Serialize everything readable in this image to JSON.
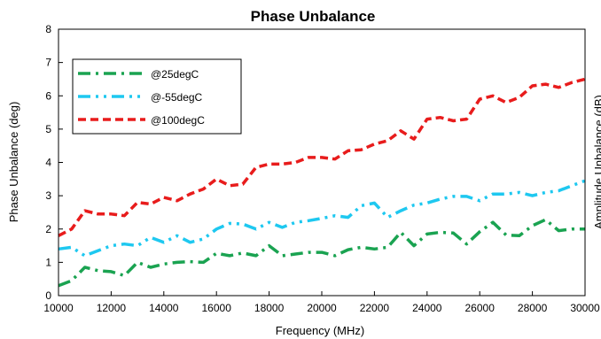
{
  "chart_data": {
    "type": "line",
    "title": "Phase Unbalance",
    "xlabel": "Frequency (MHz)",
    "ylabel": "Phase Unbalance (deg)",
    "secondary_ylabel": "Amplitude Unbalance (dB)",
    "xlim": [
      10000,
      30000
    ],
    "ylim": [
      0,
      8
    ],
    "xticks": [
      10000,
      12000,
      14000,
      16000,
      18000,
      20000,
      22000,
      24000,
      26000,
      28000,
      30000
    ],
    "yticks": [
      0,
      1,
      2,
      3,
      4,
      5,
      6,
      7,
      8
    ],
    "grid": false,
    "legend": "top-left",
    "series": [
      {
        "name": "@25degC",
        "color": "#1aa351",
        "style": "dash-dot",
        "x": [
          10000,
          10500,
          11000,
          11500,
          12000,
          12500,
          13000,
          13500,
          14000,
          14500,
          15000,
          15500,
          16000,
          16500,
          17000,
          17500,
          18000,
          18500,
          19000,
          19500,
          20000,
          20500,
          21000,
          21500,
          22000,
          22500,
          23000,
          23500,
          24000,
          24500,
          25000,
          25500,
          26000,
          26500,
          27000,
          27500,
          28000,
          28500,
          29000,
          29500,
          30000
        ],
        "values": [
          0.3,
          0.45,
          0.85,
          0.75,
          0.72,
          0.6,
          1.0,
          0.85,
          0.95,
          1.0,
          1.02,
          1.0,
          1.27,
          1.2,
          1.28,
          1.2,
          1.5,
          1.2,
          1.25,
          1.3,
          1.3,
          1.2,
          1.38,
          1.45,
          1.4,
          1.45,
          1.9,
          1.5,
          1.85,
          1.9,
          1.88,
          1.55,
          1.92,
          2.2,
          1.82,
          1.8,
          2.1,
          2.28,
          1.95,
          2.0,
          2.0
        ]
      },
      {
        "name": "@-55degC",
        "color": "#1ec8f0",
        "style": "dash-dot-dot",
        "x": [
          10000,
          10500,
          11000,
          11500,
          12000,
          12500,
          13000,
          13500,
          14000,
          14500,
          15000,
          15500,
          16000,
          16500,
          17000,
          17500,
          18000,
          18500,
          19000,
          19500,
          20000,
          20500,
          21000,
          21500,
          22000,
          22500,
          23000,
          23500,
          24000,
          24500,
          25000,
          25500,
          26000,
          26500,
          27000,
          27500,
          28000,
          28500,
          29000,
          29500,
          30000
        ],
        "values": [
          1.4,
          1.45,
          1.2,
          1.35,
          1.5,
          1.55,
          1.5,
          1.75,
          1.6,
          1.8,
          1.6,
          1.7,
          2.0,
          2.17,
          2.15,
          2.0,
          2.2,
          2.05,
          2.2,
          2.25,
          2.32,
          2.4,
          2.35,
          2.7,
          2.78,
          2.35,
          2.55,
          2.72,
          2.78,
          2.9,
          2.98,
          2.98,
          2.85,
          3.05,
          3.05,
          3.1,
          3.0,
          3.1,
          3.15,
          3.3,
          3.45
        ]
      },
      {
        "name": "@100degC",
        "color": "#e81c1c",
        "style": "dash",
        "x": [
          10000,
          10500,
          11000,
          11500,
          12000,
          12500,
          13000,
          13500,
          14000,
          14500,
          15000,
          15500,
          16000,
          16500,
          17000,
          17500,
          18000,
          18500,
          19000,
          19500,
          20000,
          20500,
          21000,
          21500,
          22000,
          22500,
          23000,
          23500,
          24000,
          24500,
          25000,
          25500,
          26000,
          26500,
          27000,
          27500,
          28000,
          28500,
          29000,
          29500,
          30000
        ],
        "values": [
          1.8,
          2.0,
          2.55,
          2.45,
          2.45,
          2.4,
          2.8,
          2.75,
          2.95,
          2.85,
          3.05,
          3.2,
          3.5,
          3.3,
          3.35,
          3.85,
          3.95,
          3.95,
          4.0,
          4.15,
          4.15,
          4.1,
          4.35,
          4.38,
          4.55,
          4.65,
          4.95,
          4.7,
          5.3,
          5.35,
          5.25,
          5.3,
          5.9,
          6.0,
          5.8,
          5.95,
          6.3,
          6.35,
          6.25,
          6.4,
          6.5
        ]
      }
    ]
  }
}
